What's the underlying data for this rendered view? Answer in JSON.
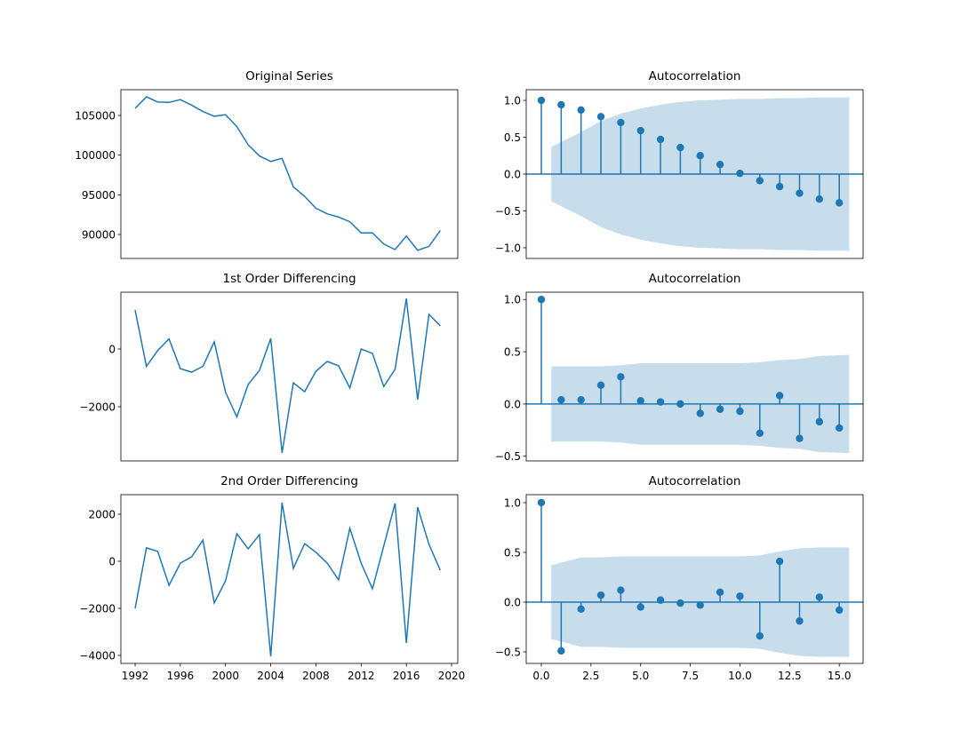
{
  "chart_data": [
    {
      "type": "line",
      "title": "Original Series",
      "color": "#1f77b4",
      "x": [
        1992,
        1993,
        1994,
        1995,
        1996,
        1997,
        1998,
        1999,
        2000,
        2001,
        2002,
        2003,
        2004,
        2005,
        2006,
        2007,
        2008,
        2009,
        2010,
        2011,
        2012,
        2013,
        2014,
        2015,
        2016,
        2017,
        2018,
        2019
      ],
      "values": [
        105900,
        107350,
        106700,
        106650,
        107000,
        106300,
        105500,
        104900,
        105100,
        103600,
        101300,
        99900,
        99200,
        99600,
        96000,
        94800,
        93300,
        92600,
        92200,
        91600,
        90200,
        90200,
        88800,
        88100,
        89800,
        88000,
        88500,
        90500
      ],
      "xlim": [
        1990.74,
        2020.55
      ],
      "ylim": [
        86980,
        108250
      ],
      "yticks": [
        90000,
        95000,
        100000,
        105000
      ]
    },
    {
      "type": "stem",
      "title": "Autocorrelation",
      "color": "#1f77b4",
      "band_color": "#1f77b4",
      "x": [
        0,
        1,
        2,
        3,
        4,
        5,
        6,
        7,
        8,
        9,
        10,
        11,
        12,
        13,
        14,
        15
      ],
      "values": [
        1.0,
        0.94,
        0.87,
        0.78,
        0.7,
        0.59,
        0.47,
        0.36,
        0.25,
        0.13,
        0.01,
        -0.09,
        -0.17,
        -0.26,
        -0.34,
        -0.39
      ],
      "confint": [
        0.37,
        0.57,
        0.72,
        0.82,
        0.89,
        0.94,
        0.98,
        1.0,
        1.01,
        1.02,
        1.02,
        1.03,
        1.03,
        1.04,
        1.04
      ],
      "xlim": [
        -0.76,
        16.2
      ],
      "ylim": [
        -1.145,
        1.145
      ],
      "yticks": [
        {
          "value": -1.0,
          "label": "−1.0"
        },
        {
          "value": -0.5,
          "label": "−0.5"
        },
        {
          "value": 0,
          "label": "0.0"
        },
        {
          "value": 0.5,
          "label": "0.5"
        },
        {
          "value": 1.0,
          "label": "1.0"
        }
      ]
    },
    {
      "type": "line",
      "title": "1st Order Differencing",
      "color": "#1f77b4",
      "x": [
        1992,
        1993,
        1994,
        1995,
        1996,
        1997,
        1998,
        1999,
        2000,
        2001,
        2002,
        2003,
        2004,
        2005,
        2006,
        2007,
        2008,
        2009,
        2010,
        2011,
        2012,
        2013,
        2014,
        2015,
        2016,
        2017,
        2018,
        2019
      ],
      "values": [
        1350,
        -600,
        -50,
        350,
        -680,
        -800,
        -600,
        250,
        -1500,
        -2350,
        -1230,
        -740,
        370,
        -3600,
        -1170,
        -1480,
        -770,
        -430,
        -580,
        -1350,
        0,
        -150,
        -1300,
        -700,
        1750,
        -1750,
        1200,
        800
      ],
      "xlim": [
        1990.74,
        2020.55
      ],
      "ylim": [
        -3877,
        1970
      ],
      "yticks": [
        {
          "value": -2000,
          "label": "−2000"
        },
        0
      ]
    },
    {
      "type": "stem",
      "title": "Autocorrelation",
      "color": "#1f77b4",
      "band_color": "#1f77b4",
      "x": [
        0,
        1,
        2,
        3,
        4,
        5,
        6,
        7,
        8,
        9,
        10,
        11,
        12,
        13,
        14,
        15
      ],
      "values": [
        1.0,
        0.04,
        0.04,
        0.18,
        0.26,
        0.03,
        0.02,
        0.0,
        -0.09,
        -0.05,
        -0.07,
        -0.28,
        0.08,
        -0.33,
        -0.17,
        -0.23
      ],
      "confint": [
        0.36,
        0.36,
        0.36,
        0.37,
        0.39,
        0.39,
        0.39,
        0.39,
        0.39,
        0.39,
        0.4,
        0.42,
        0.43,
        0.46,
        0.47
      ],
      "xlim": [
        -0.76,
        16.2
      ],
      "ylim": [
        -0.545,
        1.07
      ],
      "yticks": [
        {
          "value": -0.5,
          "label": "−0.5"
        },
        {
          "value": 0,
          "label": "0.0"
        },
        {
          "value": 0.5,
          "label": "0.5"
        },
        {
          "value": 1.0,
          "label": "1.0"
        }
      ]
    },
    {
      "type": "line",
      "title": "2nd Order Differencing",
      "color": "#1f77b4",
      "x": [
        1992,
        1993,
        1994,
        1995,
        1996,
        1997,
        1998,
        1999,
        2000,
        2001,
        2002,
        2003,
        2004,
        2005,
        2006,
        2007,
        2008,
        2009,
        2010,
        2011,
        2012,
        2013,
        2014,
        2015,
        2016,
        2017,
        2018,
        2019
      ],
      "values": [
        -2000,
        570,
        420,
        -1020,
        -80,
        190,
        900,
        -1770,
        -830,
        1170,
        530,
        1130,
        -4040,
        2490,
        -300,
        750,
        380,
        -80,
        -790,
        1400,
        -80,
        -1170,
        650,
        2460,
        -3470,
        2300,
        720,
        -380
      ],
      "xlim": [
        1990.74,
        2020.55
      ],
      "ylim": [
        -4340,
        2830
      ],
      "xticks": [
        1992,
        1996,
        2000,
        2004,
        2008,
        2012,
        2016,
        2020
      ],
      "yticks": [
        {
          "value": -4000,
          "label": "−4000"
        },
        {
          "value": -2000,
          "label": "−2000"
        },
        0,
        2000
      ]
    },
    {
      "type": "stem",
      "title": "Autocorrelation",
      "color": "#1f77b4",
      "band_color": "#1f77b4",
      "x": [
        0,
        1,
        2,
        3,
        4,
        5,
        6,
        7,
        8,
        9,
        10,
        11,
        12,
        13,
        14,
        15
      ],
      "values": [
        1.0,
        -0.49,
        -0.07,
        0.07,
        0.12,
        -0.05,
        0.02,
        -0.01,
        -0.03,
        0.1,
        0.06,
        -0.34,
        0.41,
        -0.19,
        0.05,
        -0.08
      ],
      "confint": [
        0.37,
        0.45,
        0.45,
        0.46,
        0.46,
        0.46,
        0.46,
        0.46,
        0.46,
        0.46,
        0.47,
        0.51,
        0.54,
        0.55,
        0.55
      ],
      "xlim": [
        -0.76,
        16.2
      ],
      "ylim": [
        -0.616,
        1.08
      ],
      "xticks": [
        {
          "value": 0,
          "label": "0.0"
        },
        {
          "value": 2.5,
          "label": "2.5"
        },
        {
          "value": 5,
          "label": "5.0"
        },
        {
          "value": 7.5,
          "label": "7.5"
        },
        {
          "value": 10,
          "label": "10.0"
        },
        {
          "value": 12.5,
          "label": "12.5"
        },
        {
          "value": 15,
          "label": "15.0"
        }
      ],
      "yticks": [
        {
          "value": -0.5,
          "label": "−0.5"
        },
        {
          "value": 0,
          "label": "0.0"
        },
        {
          "value": 0.5,
          "label": "0.5"
        },
        {
          "value": 1.0,
          "label": "1.0"
        }
      ]
    }
  ]
}
